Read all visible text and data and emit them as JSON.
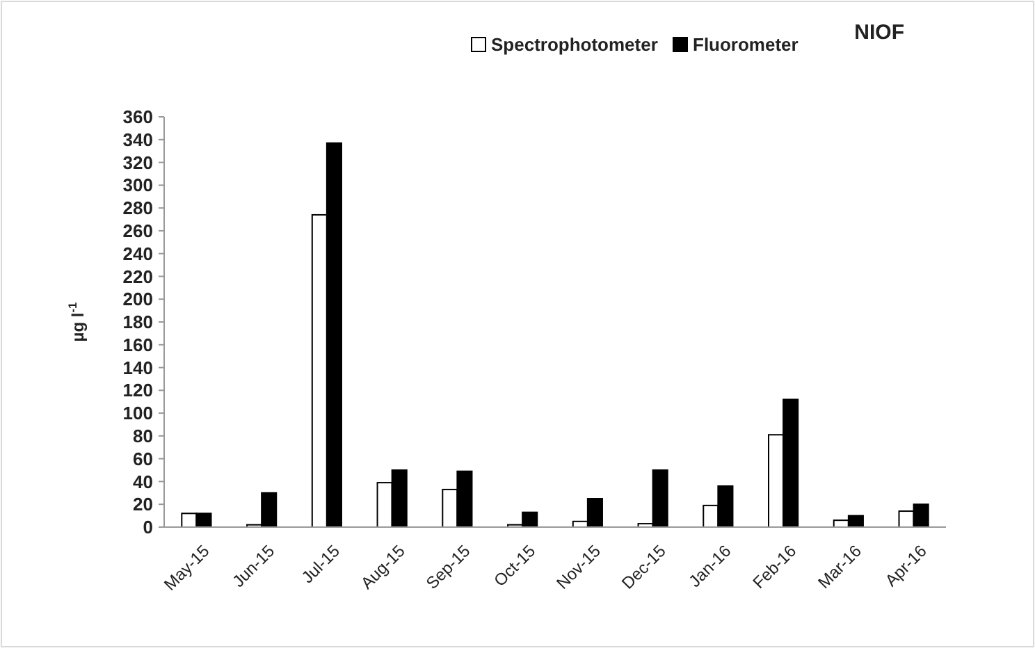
{
  "chart_data": {
    "type": "bar",
    "title": "NIOF",
    "ylabel": "µg l$^{-1}$",
    "categories": [
      "May-15",
      "Jun-15",
      "Jul-15",
      "Aug-15",
      "Sep-15",
      "Oct-15",
      "Nov-15",
      "Dec-15",
      "Jan-16",
      "Feb-16",
      "Mar-16",
      "Apr-16"
    ],
    "series": [
      {
        "name": "Spectrophotometer",
        "color": "#ffffff",
        "values": [
          12,
          2,
          274,
          39,
          33,
          2,
          5,
          3,
          19,
          81,
          6,
          14
        ]
      },
      {
        "name": "Fluorometer",
        "color": "#000000",
        "values": [
          12,
          30,
          337,
          50,
          49,
          13,
          25,
          50,
          36,
          112,
          10,
          20
        ]
      }
    ],
    "ylim": [
      0,
      360
    ],
    "yticks": [
      0,
      20,
      40,
      60,
      80,
      100,
      120,
      140,
      160,
      180,
      200,
      220,
      240,
      260,
      280,
      300,
      320,
      340,
      360
    ],
    "grid": false,
    "legend": "top"
  }
}
